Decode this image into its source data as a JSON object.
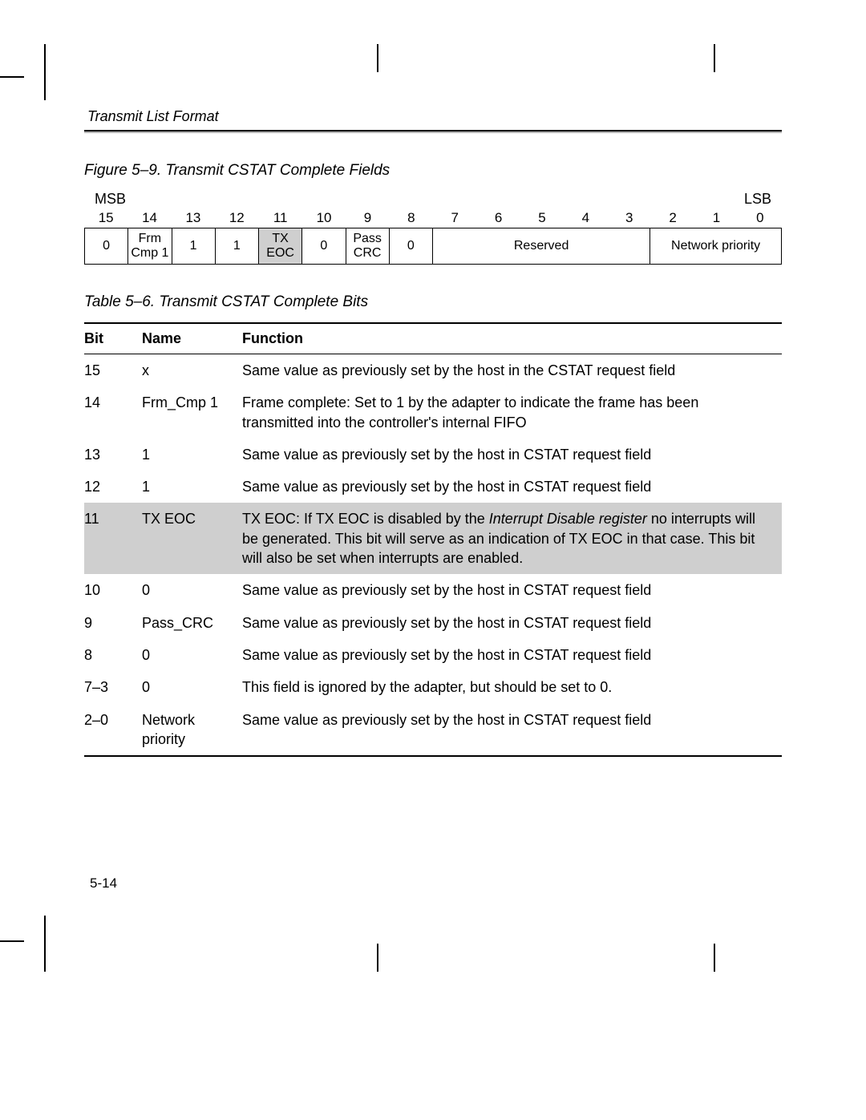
{
  "header": {
    "title": "Transmit List Format"
  },
  "figure": {
    "caption": "Figure 5–9. Transmit CSTAT Complete Fields",
    "msb": "MSB",
    "lsb": "LSB",
    "bit_numbers": [
      "15",
      "14",
      "13",
      "12",
      "11",
      "10",
      "9",
      "8",
      "7",
      "6",
      "5",
      "4",
      "3",
      "2",
      "1",
      "0"
    ],
    "cells": [
      {
        "label": "0",
        "span": 1,
        "shaded": false
      },
      {
        "label": "Frm Cmp 1",
        "span": 1,
        "shaded": false
      },
      {
        "label": "1",
        "span": 1,
        "shaded": false
      },
      {
        "label": "1",
        "span": 1,
        "shaded": false
      },
      {
        "label": "TX EOC",
        "span": 1,
        "shaded": true
      },
      {
        "label": "0",
        "span": 1,
        "shaded": false
      },
      {
        "label": "Pass CRC",
        "span": 1,
        "shaded": false
      },
      {
        "label": "0",
        "span": 1,
        "shaded": false
      },
      {
        "label": "Reserved",
        "span": 5,
        "shaded": false
      },
      {
        "label": "Network priority",
        "span": 3,
        "shaded": false
      }
    ],
    "col_unit_pct": 6.25
  },
  "table": {
    "caption": "Table 5–6. Transmit CSTAT Complete Bits",
    "headers": {
      "bit": "Bit",
      "name": "Name",
      "func": "Function"
    },
    "rows": [
      {
        "bit": "15",
        "name": "x",
        "func": "Same value as previously set by the host in the CSTAT request field",
        "shaded": false
      },
      {
        "bit": "14",
        "name": "Frm_Cmp 1",
        "func": "Frame complete: Set to 1 by the adapter to indicate the frame has been transmitted into the controller's internal FIFO",
        "shaded": false
      },
      {
        "bit": "13",
        "name": "1",
        "func": "Same value as previously set by the host in CSTAT request field",
        "shaded": false
      },
      {
        "bit": "12",
        "name": "1",
        "func": "Same value as previously set by the host in CSTAT request field",
        "shaded": false
      },
      {
        "bit": "11",
        "name": "TX EOC",
        "func_pre": "TX EOC: If TX EOC is disabled by the ",
        "func_italic": "Interrupt Disable register",
        "func_post": " no interrupts will be generated. This bit will serve as an indication of TX EOC in that case. This bit will also be set when interrupts are enabled.",
        "shaded": true
      },
      {
        "bit": "10",
        "name": "0",
        "func": "Same value as previously set by the host in CSTAT request field",
        "shaded": false
      },
      {
        "bit": "9",
        "name": "Pass_CRC",
        "func": "Same value as previously set by the host in CSTAT request field",
        "shaded": false
      },
      {
        "bit": "8",
        "name": "0",
        "func": "Same value as previously set by the host in CSTAT request field",
        "shaded": false
      },
      {
        "bit": "7–3",
        "name": "0",
        "func": "This field is ignored by the adapter, but should be set to 0.",
        "shaded": false
      },
      {
        "bit": "2–0",
        "name": "Network priority",
        "func": "Same value as previously set by the host in CSTAT request field",
        "shaded": false
      }
    ]
  },
  "page_number": "5-14"
}
